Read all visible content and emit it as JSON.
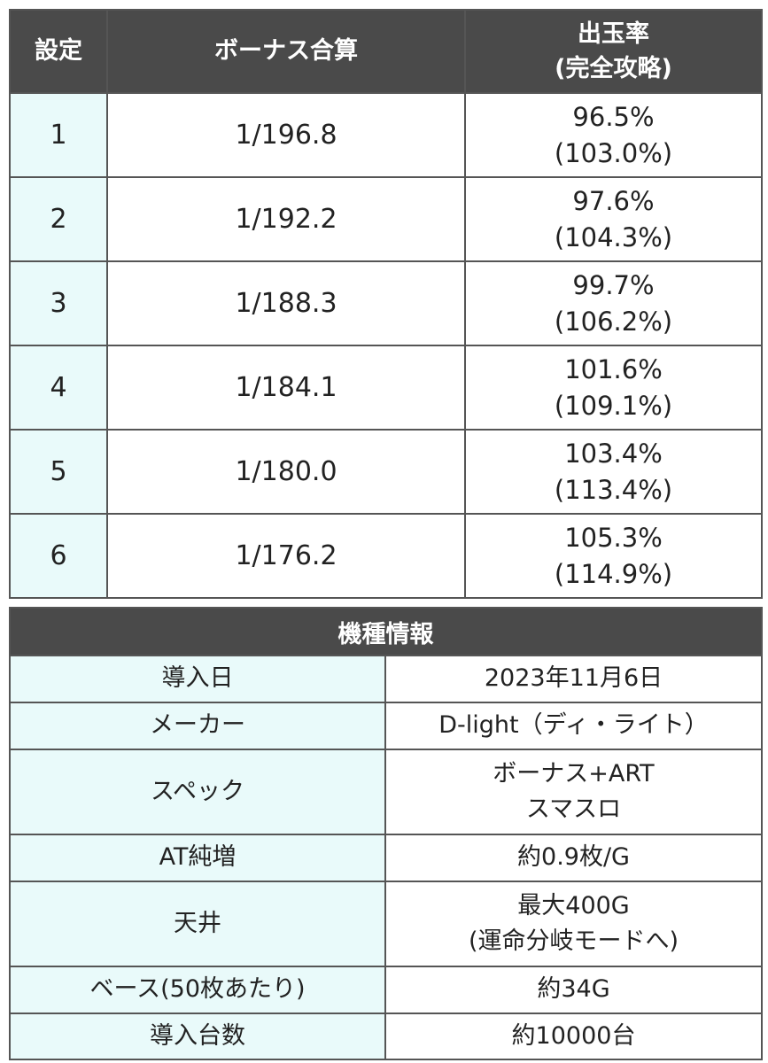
{
  "settings_table": {
    "headers": [
      "設定",
      "ボーナス合算",
      "出玉率",
      "(完全攻略)"
    ],
    "rows": [
      {
        "setting": "1",
        "bonus": "1/196.8",
        "payout": "96.5%",
        "payout_full": "(103.0%)"
      },
      {
        "setting": "2",
        "bonus": "1/192.2",
        "payout": "97.6%",
        "payout_full": "(104.3%)"
      },
      {
        "setting": "3",
        "bonus": "1/188.3",
        "payout": "99.7%",
        "payout_full": "(106.2%)"
      },
      {
        "setting": "4",
        "bonus": "1/184.1",
        "payout": "101.6%",
        "payout_full": "(109.1%)"
      },
      {
        "setting": "5",
        "bonus": "1/180.0",
        "payout": "103.4%",
        "payout_full": "(113.4%)"
      },
      {
        "setting": "6",
        "bonus": "1/176.2",
        "payout": "105.3%",
        "payout_full": "(114.9%)"
      }
    ]
  },
  "info_table": {
    "title": "機種情報",
    "rows": [
      {
        "label": "導入日",
        "value": "2023年11月6日",
        "value2": ""
      },
      {
        "label": "メーカー",
        "value": "D-light（ディ・ライト）",
        "value2": ""
      },
      {
        "label": "スペック",
        "value": "ボーナス+ART",
        "value2": "スマスロ"
      },
      {
        "label": "AT純増",
        "value": "約0.9枚/G",
        "value2": ""
      },
      {
        "label": "天井",
        "value": "最大400G",
        "value2": "(運命分岐モードへ)"
      },
      {
        "label": "ベース(50枚あたり)",
        "value": "約34G",
        "value2": ""
      },
      {
        "label": "導入台数",
        "value": "約10000台",
        "value2": ""
      }
    ]
  },
  "colors": {
    "header_bg": "#4a4a4a",
    "label_bg": "#e9fafa",
    "border": "#555555"
  }
}
